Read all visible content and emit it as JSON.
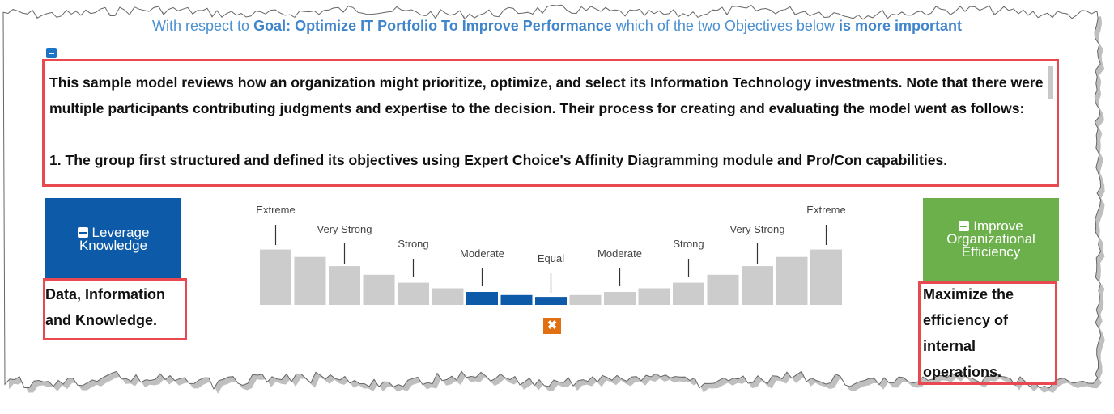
{
  "question": {
    "prefix": "With respect to ",
    "goal": "Goal: Optimize IT Portfolio To Improve Performance",
    "middle": " which of the two Objectives below ",
    "emphasis": "is more important"
  },
  "description": {
    "paragraphs": [
      "This sample model reviews how an organization might prioritize, optimize, and select its Information Technology investments.  Note that there were multiple participants contributing judgments and expertise to the decision.  Their process for creating and evaluating the model went as follows:",
      "1. The group first structured and defined its objectives using Expert Choice's Affinity Diagramming module and Pro/Con capabilities."
    ]
  },
  "left_objective": {
    "lines": [
      "Leverage",
      "Knowledge"
    ],
    "description_lines": [
      "Data, Information",
      "and Knowledge."
    ]
  },
  "right_objective": {
    "lines": [
      "Improve",
      "Organizational",
      "Efficiency"
    ],
    "description_lines": [
      "Maximize the",
      "efficiency of",
      "internal",
      "operations."
    ]
  },
  "scale": {
    "labels": [
      "Extreme",
      "Very Strong",
      "Strong",
      "Moderate",
      "Equal",
      "Moderate",
      "Strong",
      "Very Strong",
      "Extreme"
    ],
    "bar_heights": [
      9,
      7.8,
      6.3,
      4.9,
      3.6,
      2.7,
      2.1,
      1.6,
      1.3,
      1.6,
      2.1,
      2.7,
      3.6,
      4.9,
      6.3,
      7.8,
      9
    ],
    "selected_index": [
      6,
      7,
      8
    ],
    "colors": {
      "selected": "#0c5aa8",
      "unselected": "#cccccc"
    }
  },
  "colors": {
    "left_objective_bg": "#0c5aa8",
    "right_objective_bg": "#6cb04c",
    "highlight_frame": "#e84850",
    "reset_button": "#e07010"
  },
  "icons": {
    "collapse": "minus-square-icon",
    "reset": "close-icon"
  },
  "reset_label": "✖"
}
